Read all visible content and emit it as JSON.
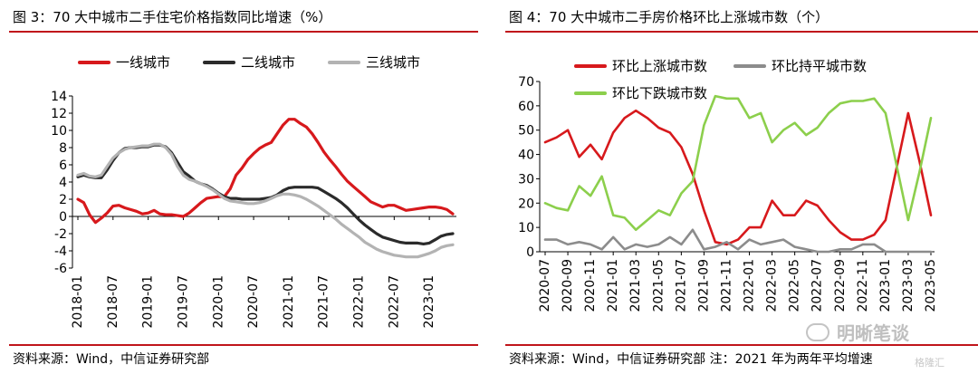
{
  "left": {
    "title": "图 3：70 大中城市二手住宅价格指数同比增速（%）",
    "source": "资料来源：Wind，中信证券研究部",
    "legend": [
      "一线城市",
      "二线城市",
      "三线城市"
    ]
  },
  "right": {
    "title": "图 4：70 大中城市二手房价格环比上涨城市数（个）",
    "source": "资料来源：Wind，中信证券研究部 注：2021 年为两年平均增速",
    "legend": [
      "环比上涨城市数",
      "环比持平城市数",
      "环比下跌城市数"
    ]
  },
  "watermark": {
    "text": "明晰笔谈",
    "sub": "格隆汇"
  },
  "chart_data": [
    {
      "type": "line",
      "title": "图 3：70 大中城市二手住宅价格指数同比增速（%）",
      "ylim": [
        -6,
        14
      ],
      "yticks": [
        -6,
        -4,
        -2,
        0,
        2,
        4,
        6,
        8,
        10,
        12,
        14
      ],
      "xtick_labels": [
        "2018-01",
        "2018-07",
        "2019-01",
        "2019-07",
        "2020-01",
        "2020-07",
        "2021-01",
        "2021-07",
        "2022-01",
        "2022-07",
        "2023-01"
      ],
      "grid": false,
      "legend_position": "top",
      "x": [
        "2018-01",
        "2018-02",
        "2018-03",
        "2018-04",
        "2018-05",
        "2018-06",
        "2018-07",
        "2018-08",
        "2018-09",
        "2018-10",
        "2018-11",
        "2018-12",
        "2019-01",
        "2019-02",
        "2019-03",
        "2019-04",
        "2019-05",
        "2019-06",
        "2019-07",
        "2019-08",
        "2019-09",
        "2019-10",
        "2019-11",
        "2019-12",
        "2020-01",
        "2020-02",
        "2020-03",
        "2020-04",
        "2020-05",
        "2020-06",
        "2020-07",
        "2020-08",
        "2020-09",
        "2020-10",
        "2020-11",
        "2020-12",
        "2021-01",
        "2021-02",
        "2021-03",
        "2021-04",
        "2021-05",
        "2021-06",
        "2021-07",
        "2021-08",
        "2021-09",
        "2021-10",
        "2021-11",
        "2021-12",
        "2022-01",
        "2022-02",
        "2022-03",
        "2022-04",
        "2022-05",
        "2022-06",
        "2022-07",
        "2022-08",
        "2022-09",
        "2022-10",
        "2022-11",
        "2022-12",
        "2023-01",
        "2023-02",
        "2023-03",
        "2023-04",
        "2023-05"
      ],
      "series": [
        {
          "name": "一线城市",
          "color": "#d7191c",
          "values": [
            2.0,
            1.6,
            0.2,
            -0.7,
            -0.2,
            0.4,
            1.2,
            1.3,
            1.0,
            0.8,
            0.6,
            0.3,
            0.4,
            0.7,
            0.3,
            0.2,
            0.2,
            0.1,
            0.0,
            0.4,
            1.0,
            1.6,
            2.1,
            2.2,
            2.3,
            2.3,
            3.2,
            4.8,
            5.6,
            6.6,
            7.3,
            7.9,
            8.3,
            8.6,
            9.6,
            10.6,
            11.3,
            11.3,
            10.8,
            10.4,
            9.6,
            8.6,
            7.5,
            6.6,
            5.8,
            4.9,
            4.1,
            3.5,
            2.9,
            2.3,
            1.7,
            1.4,
            1.1,
            1.3,
            1.3,
            1.0,
            0.7,
            0.8,
            0.9,
            1.0,
            1.1,
            1.1,
            1.0,
            0.8,
            0.3
          ]
        },
        {
          "name": "二线城市",
          "color": "#2b2b2b",
          "values": [
            4.6,
            4.8,
            4.6,
            4.5,
            4.5,
            5.4,
            6.5,
            7.4,
            7.9,
            8.0,
            8.0,
            8.1,
            8.1,
            8.3,
            8.3,
            8.1,
            7.4,
            6.3,
            5.2,
            4.7,
            4.1,
            3.8,
            3.6,
            3.2,
            2.7,
            2.3,
            2.1,
            2.1,
            2.0,
            2.0,
            2.0,
            2.0,
            2.1,
            2.2,
            2.5,
            3.0,
            3.3,
            3.4,
            3.4,
            3.4,
            3.4,
            3.3,
            2.9,
            2.5,
            2.1,
            1.6,
            1.0,
            0.3,
            -0.4,
            -1.0,
            -1.5,
            -2.0,
            -2.4,
            -2.6,
            -2.8,
            -3.0,
            -3.1,
            -3.1,
            -3.1,
            -3.2,
            -3.1,
            -2.7,
            -2.3,
            -2.1,
            -2.0
          ]
        },
        {
          "name": "三线城市",
          "color": "#b3b3b3",
          "values": [
            4.8,
            5.0,
            4.7,
            4.6,
            4.8,
            5.8,
            6.8,
            7.4,
            7.8,
            8.0,
            8.1,
            8.2,
            8.2,
            8.4,
            8.4,
            8.0,
            7.2,
            5.8,
            4.8,
            4.3,
            4.1,
            3.8,
            3.5,
            3.1,
            2.6,
            2.1,
            1.8,
            1.7,
            1.6,
            1.5,
            1.5,
            1.6,
            1.8,
            2.1,
            2.4,
            2.6,
            2.6,
            2.5,
            2.3,
            2.0,
            1.6,
            1.2,
            0.7,
            0.2,
            -0.3,
            -0.9,
            -1.4,
            -1.9,
            -2.4,
            -3.0,
            -3.4,
            -3.8,
            -4.1,
            -4.3,
            -4.5,
            -4.6,
            -4.7,
            -4.7,
            -4.7,
            -4.5,
            -4.3,
            -4.0,
            -3.6,
            -3.4,
            -3.3
          ]
        }
      ]
    },
    {
      "type": "line",
      "title": "图 4：70 大中城市二手房价格环比上涨城市数（个）",
      "ylim": [
        0,
        70
      ],
      "yticks": [
        0,
        10,
        20,
        30,
        40,
        50,
        60,
        70
      ],
      "xtick_labels": [
        "2020-07",
        "2020-09",
        "2020-11",
        "2021-01",
        "2021-03",
        "2021-05",
        "2021-07",
        "2021-09",
        "2021-11",
        "2022-01",
        "2022-03",
        "2022-05",
        "2022-07",
        "2022-09",
        "2022-11",
        "2023-01",
        "2023-03",
        "2023-05"
      ],
      "grid": false,
      "legend_position": "top",
      "x": [
        "2020-07",
        "2020-08",
        "2020-09",
        "2020-10",
        "2020-11",
        "2020-12",
        "2021-01",
        "2021-02",
        "2021-03",
        "2021-04",
        "2021-05",
        "2021-06",
        "2021-07",
        "2021-08",
        "2021-09",
        "2021-10",
        "2021-11",
        "2021-12",
        "2022-01",
        "2022-02",
        "2022-03",
        "2022-04",
        "2022-05",
        "2022-06",
        "2022-07",
        "2022-08",
        "2022-09",
        "2022-10",
        "2022-11",
        "2022-12",
        "2023-01",
        "2023-02",
        "2023-03",
        "2023-04",
        "2023-05"
      ],
      "series": [
        {
          "name": "环比上涨城市数",
          "color": "#d7191c",
          "values": [
            45,
            47,
            50,
            39,
            44,
            38,
            49,
            55,
            58,
            55,
            51,
            49,
            43,
            32,
            17,
            4,
            3,
            5,
            10,
            10,
            21,
            15,
            15,
            21,
            19,
            13,
            8,
            5,
            5,
            7,
            13,
            35,
            57,
            37,
            15
          ]
        },
        {
          "name": "环比持平城市数",
          "color": "#8c8c8c",
          "values": [
            5,
            5,
            3,
            4,
            3,
            1,
            6,
            1,
            3,
            2,
            3,
            6,
            3,
            9,
            1,
            2,
            4,
            1,
            5,
            3,
            4,
            5,
            2,
            1,
            0,
            0,
            1,
            1,
            3,
            3,
            0,
            0,
            0,
            0,
            0
          ]
        },
        {
          "name": "环比下跌城市数",
          "color": "#8ccf4c",
          "values": [
            20,
            18,
            17,
            27,
            23,
            31,
            15,
            14,
            9,
            13,
            17,
            15,
            24,
            29,
            52,
            64,
            63,
            63,
            55,
            57,
            45,
            50,
            53,
            48,
            51,
            57,
            61,
            62,
            62,
            63,
            57,
            35,
            13,
            33,
            55
          ]
        }
      ]
    }
  ]
}
